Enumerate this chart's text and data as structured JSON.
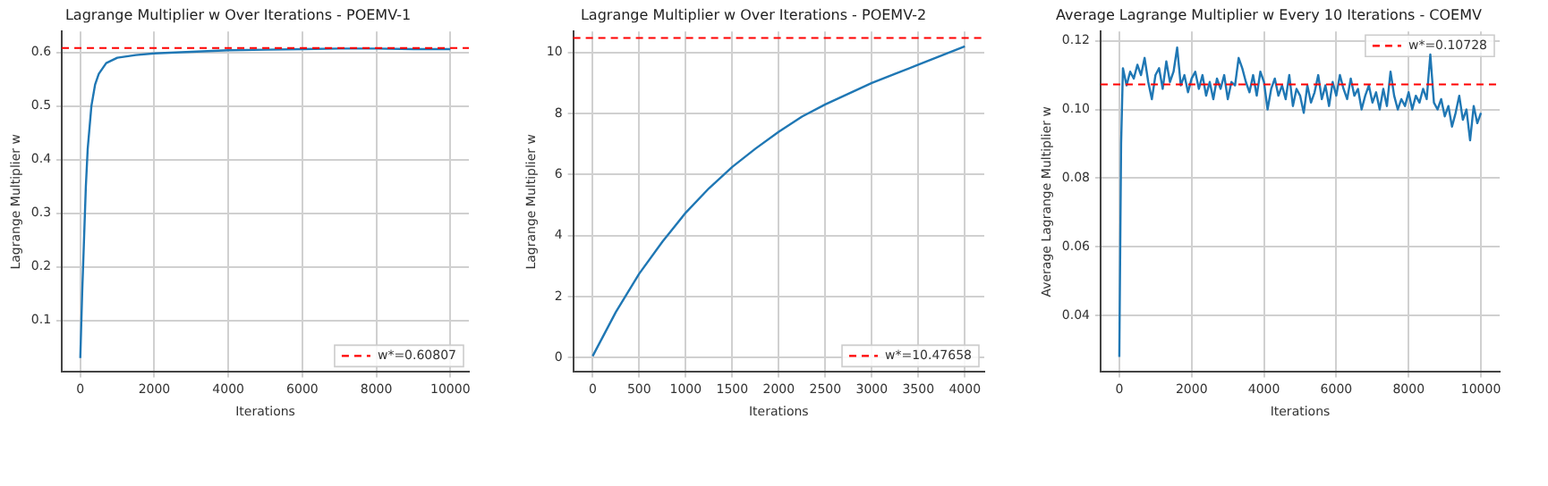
{
  "chart_data": [
    {
      "type": "line",
      "title": "Lagrange Multiplier w Over Iterations - POEMV-1",
      "xlabel": "Iterations",
      "ylabel": "Lagrange Multiplier w",
      "x": [
        0,
        50,
        100,
        150,
        200,
        300,
        400,
        500,
        700,
        1000,
        1500,
        2000,
        3000,
        4000,
        5000,
        6000,
        7000,
        8000,
        9000,
        10000
      ],
      "series": [
        {
          "color": "#1f77b4",
          "values": [
            0.03,
            0.15,
            0.25,
            0.35,
            0.42,
            0.5,
            0.54,
            0.56,
            0.58,
            0.59,
            0.595,
            0.598,
            0.601,
            0.604,
            0.605,
            0.606,
            0.607,
            0.607,
            0.606,
            0.606
          ]
        }
      ],
      "xlim": [
        -500,
        10500
      ],
      "xticks": [
        0,
        2000,
        4000,
        6000,
        8000,
        10000
      ],
      "ylim": [
        0.004,
        0.639
      ],
      "yticks": [
        {
          "value": 0.1,
          "label": "0.1"
        },
        {
          "value": 0.2,
          "label": "0.2"
        },
        {
          "value": 0.3,
          "label": "0.3"
        },
        {
          "value": 0.4,
          "label": "0.4"
        },
        {
          "value": 0.5,
          "label": "0.5"
        },
        {
          "value": 0.6,
          "label": "0.6"
        }
      ],
      "ref_lines": [
        {
          "axis": "y",
          "value": 0.60807,
          "label": "w*=0.60807",
          "color": "#ff0000",
          "line_style": "dashed"
        }
      ],
      "grid": true,
      "legend": "bottom right"
    },
    {
      "type": "line",
      "title": "Lagrange Multiplier w Over Iterations - POEMV-2",
      "xlabel": "Iterations",
      "ylabel": "Lagrange Multiplier w",
      "x": [
        0,
        250,
        500,
        750,
        1000,
        1250,
        1500,
        1750,
        2000,
        2250,
        2500,
        2750,
        3000,
        3250,
        3500,
        3750,
        4000
      ],
      "series": [
        {
          "color": "#1f77b4",
          "values": [
            0.05,
            1.5,
            2.75,
            3.8,
            4.75,
            5.55,
            6.25,
            6.85,
            7.4,
            7.9,
            8.3,
            8.65,
            9.0,
            9.3,
            9.6,
            9.9,
            10.2
          ]
        }
      ],
      "xlim": [
        -209,
        4209
      ],
      "xticks": [
        0,
        500,
        1000,
        1500,
        2000,
        2500,
        3000,
        3500,
        4000
      ],
      "ylim": [
        -0.47,
        10.69
      ],
      "yticks": [
        0,
        2,
        4,
        6,
        8,
        10
      ],
      "ref_lines": [
        {
          "axis": "y",
          "value": 10.47658,
          "label": "w*=10.47658",
          "color": "#ff0000",
          "line_style": "dashed"
        }
      ],
      "grid": true,
      "legend": "bottom right"
    },
    {
      "type": "line",
      "title": "Average Lagrange Multiplier w Every 10 Iterations - COEMV",
      "xlabel": "Iterations",
      "ylabel": "Average Lagrange Multiplier w",
      "x": [
        0,
        50,
        100,
        200,
        300,
        400,
        500,
        600,
        700,
        800,
        900,
        1000,
        1100,
        1200,
        1300,
        1400,
        1500,
        1600,
        1700,
        1800,
        1900,
        2000,
        2100,
        2200,
        2300,
        2400,
        2500,
        2600,
        2700,
        2800,
        2900,
        3000,
        3100,
        3200,
        3300,
        3400,
        3500,
        3600,
        3700,
        3800,
        3900,
        4000,
        4100,
        4200,
        4300,
        4400,
        4500,
        4600,
        4700,
        4800,
        4900,
        5000,
        5100,
        5200,
        5300,
        5400,
        5500,
        5600,
        5700,
        5800,
        5900,
        6000,
        6100,
        6200,
        6300,
        6400,
        6500,
        6600,
        6700,
        6800,
        6900,
        7000,
        7100,
        7200,
        7300,
        7400,
        7500,
        7600,
        7700,
        7800,
        7900,
        8000,
        8100,
        8200,
        8300,
        8400,
        8500,
        8600,
        8700,
        8800,
        8900,
        9000,
        9100,
        9200,
        9300,
        9400,
        9500,
        9600,
        9700,
        9800,
        9900,
        10000
      ],
      "series": [
        {
          "color": "#1f77b4",
          "values": [
            0.028,
            0.09,
            0.112,
            0.107,
            0.111,
            0.109,
            0.113,
            0.11,
            0.115,
            0.108,
            0.103,
            0.11,
            0.112,
            0.106,
            0.114,
            0.108,
            0.111,
            0.118,
            0.107,
            0.11,
            0.105,
            0.109,
            0.111,
            0.106,
            0.11,
            0.104,
            0.108,
            0.103,
            0.109,
            0.106,
            0.11,
            0.103,
            0.108,
            0.107,
            0.115,
            0.112,
            0.108,
            0.105,
            0.11,
            0.104,
            0.111,
            0.108,
            0.1,
            0.106,
            0.109,
            0.104,
            0.107,
            0.103,
            0.11,
            0.101,
            0.106,
            0.104,
            0.099,
            0.107,
            0.102,
            0.105,
            0.11,
            0.103,
            0.107,
            0.101,
            0.108,
            0.104,
            0.11,
            0.106,
            0.103,
            0.109,
            0.104,
            0.106,
            0.1,
            0.104,
            0.107,
            0.102,
            0.105,
            0.1,
            0.106,
            0.101,
            0.111,
            0.104,
            0.1,
            0.103,
            0.101,
            0.105,
            0.1,
            0.104,
            0.102,
            0.106,
            0.103,
            0.116,
            0.102,
            0.1,
            0.103,
            0.098,
            0.101,
            0.095,
            0.099,
            0.104,
            0.097,
            0.1,
            0.091,
            0.101,
            0.096,
            0.099
          ]
        }
      ],
      "xlim": [
        -518,
        10518
      ],
      "xticks": [
        0,
        2000,
        4000,
        6000,
        8000,
        10000
      ],
      "ylim": [
        0.0236,
        0.1227
      ],
      "yticks": [
        0.04,
        0.06,
        0.08,
        {
          "value": 0.1,
          "label": "0.10"
        },
        0.12
      ],
      "ref_lines": [
        {
          "axis": "y",
          "value": 0.10728,
          "label": "w*=0.10728",
          "color": "#ff0000",
          "line_style": "dashed"
        }
      ],
      "grid": true,
      "legend": "top right"
    }
  ]
}
